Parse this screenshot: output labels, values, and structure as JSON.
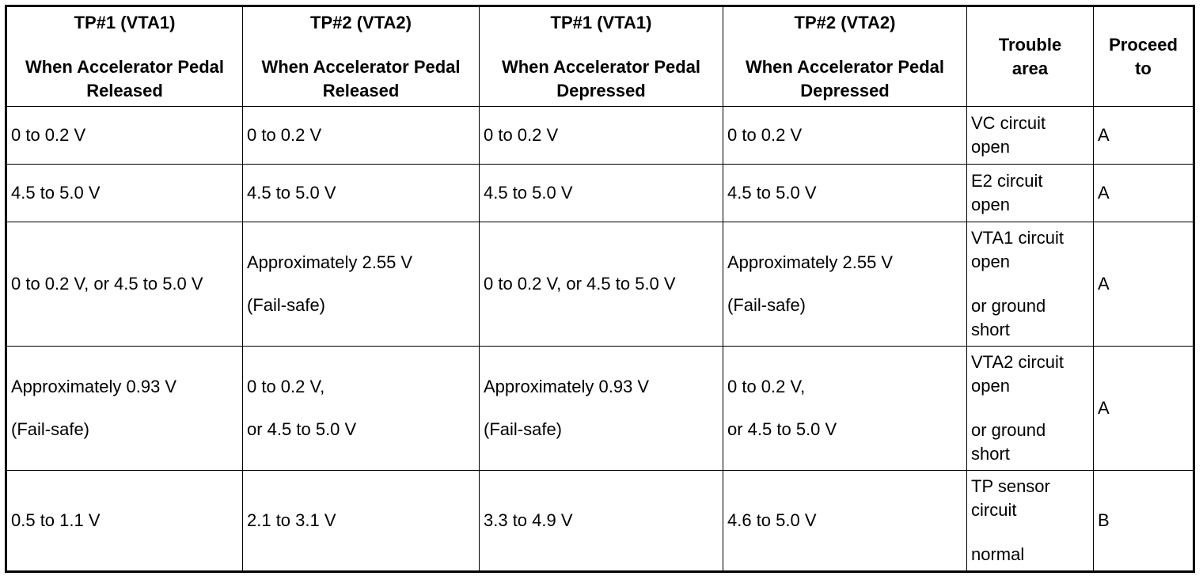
{
  "table": {
    "headers": [
      {
        "lines": [
          "TP#1 (VTA1)",
          "",
          "When Accelerator Pedal",
          "Released"
        ]
      },
      {
        "lines": [
          "TP#2 (VTA2)",
          "",
          "When Accelerator Pedal",
          "Released"
        ]
      },
      {
        "lines": [
          "TP#1 (VTA1)",
          "",
          "When Accelerator Pedal",
          "Depressed"
        ]
      },
      {
        "lines": [
          "TP#2 (VTA2)",
          "",
          "When Accelerator Pedal",
          "Depressed"
        ]
      },
      {
        "lines": [
          "Trouble",
          "area"
        ]
      },
      {
        "lines": [
          "Proceed",
          "to"
        ]
      }
    ],
    "rows": [
      {
        "cells": [
          {
            "lines": [
              "0 to 0.2 V"
            ]
          },
          {
            "lines": [
              "0 to 0.2 V"
            ]
          },
          {
            "lines": [
              "0 to 0.2 V"
            ]
          },
          {
            "lines": [
              "0 to 0.2 V"
            ]
          }
        ],
        "trouble": [
          "VC circuit",
          "open"
        ],
        "proceed": "A"
      },
      {
        "cells": [
          {
            "lines": [
              "4.5 to 5.0 V"
            ]
          },
          {
            "lines": [
              "4.5 to 5.0 V"
            ]
          },
          {
            "lines": [
              "4.5 to 5.0 V"
            ]
          },
          {
            "lines": [
              "4.5 to 5.0 V"
            ]
          }
        ],
        "trouble": [
          "E2 circuit",
          "open"
        ],
        "proceed": "A"
      },
      {
        "cells": [
          {
            "lines": [
              "0 to 0.2 V, or 4.5 to 5.0 V"
            ]
          },
          {
            "lines": [
              "Approximately 2.55 V",
              "(Fail-safe)"
            ]
          },
          {
            "lines": [
              "0 to 0.2 V, or 4.5 to 5.0 V"
            ]
          },
          {
            "lines": [
              "Approximately 2.55 V",
              "(Fail-safe)"
            ]
          }
        ],
        "trouble": [
          "VTA1 circuit",
          "open",
          "",
          "or ground",
          "short"
        ],
        "proceed": "A"
      },
      {
        "cells": [
          {
            "lines": [
              "Approximately 0.93 V",
              "(Fail-safe)"
            ]
          },
          {
            "lines": [
              "0 to 0.2 V,",
              "or 4.5 to 5.0 V"
            ]
          },
          {
            "lines": [
              "Approximately 0.93 V",
              "(Fail-safe)"
            ]
          },
          {
            "lines": [
              "0 to 0.2 V,",
              "or 4.5 to 5.0 V"
            ]
          }
        ],
        "trouble": [
          "VTA2 circuit",
          "open",
          "",
          "or ground",
          "short"
        ],
        "proceed": "A"
      },
      {
        "cells": [
          {
            "lines": [
              "0.5 to 1.1 V"
            ]
          },
          {
            "lines": [
              "2.1 to 3.1 V"
            ]
          },
          {
            "lines": [
              "3.3 to 4.9 V"
            ]
          },
          {
            "lines": [
              "4.6 to 5.0 V"
            ]
          }
        ],
        "trouble": [
          "TP sensor",
          "circuit",
          "",
          "normal"
        ],
        "proceed": "B"
      }
    ]
  }
}
